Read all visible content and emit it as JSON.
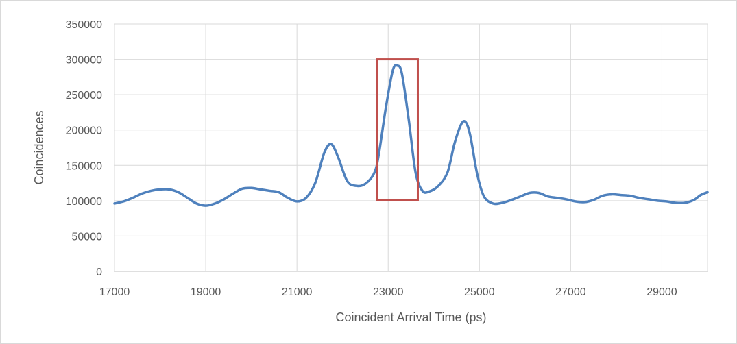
{
  "chart_data": {
    "type": "line",
    "title": "",
    "xlabel": "Coincident Arrival Time (ps)",
    "ylabel": "Coincidences",
    "xlim": [
      17000,
      30000
    ],
    "ylim": [
      0,
      350000
    ],
    "x_ticks": [
      17000,
      19000,
      21000,
      23000,
      25000,
      27000,
      29000
    ],
    "x_tick_labels": [
      "17000",
      "19000",
      "21000",
      "23000",
      "25000",
      "27000",
      "29000"
    ],
    "y_ticks": [
      0,
      50000,
      100000,
      150000,
      200000,
      250000,
      300000,
      350000
    ],
    "y_tick_labels": [
      "0",
      "50000",
      "100000",
      "150000",
      "200000",
      "250000",
      "300000",
      "350000"
    ],
    "grid": true,
    "legend": "none",
    "series": [
      {
        "color": "#4f81bd",
        "points": [
          [
            17000,
            96000
          ],
          [
            17200,
            99000
          ],
          [
            17400,
            104000
          ],
          [
            17600,
            110000
          ],
          [
            17800,
            114000
          ],
          [
            18000,
            116000
          ],
          [
            18200,
            116000
          ],
          [
            18400,
            112000
          ],
          [
            18600,
            104000
          ],
          [
            18800,
            96000
          ],
          [
            19000,
            93000
          ],
          [
            19200,
            96000
          ],
          [
            19400,
            102000
          ],
          [
            19600,
            110000
          ],
          [
            19800,
            117000
          ],
          [
            20000,
            118000
          ],
          [
            20200,
            116000
          ],
          [
            20400,
            114000
          ],
          [
            20600,
            112000
          ],
          [
            20800,
            104000
          ],
          [
            21000,
            99000
          ],
          [
            21200,
            104000
          ],
          [
            21400,
            125000
          ],
          [
            21600,
            168000
          ],
          [
            21750,
            180000
          ],
          [
            21900,
            162000
          ],
          [
            22100,
            128000
          ],
          [
            22300,
            121000
          ],
          [
            22500,
            124000
          ],
          [
            22700,
            140000
          ],
          [
            22800,
            168000
          ],
          [
            22950,
            232000
          ],
          [
            23100,
            284000
          ],
          [
            23200,
            291000
          ],
          [
            23300,
            280000
          ],
          [
            23450,
            215000
          ],
          [
            23600,
            140000
          ],
          [
            23750,
            114000
          ],
          [
            23900,
            113000
          ],
          [
            24100,
            121000
          ],
          [
            24300,
            140000
          ],
          [
            24450,
            180000
          ],
          [
            24600,
            208000
          ],
          [
            24700,
            211000
          ],
          [
            24800,
            192000
          ],
          [
            24950,
            138000
          ],
          [
            25100,
            106000
          ],
          [
            25300,
            96000
          ],
          [
            25500,
            97000
          ],
          [
            25700,
            101000
          ],
          [
            25900,
            106000
          ],
          [
            26100,
            111000
          ],
          [
            26300,
            111000
          ],
          [
            26500,
            106000
          ],
          [
            26700,
            104000
          ],
          [
            26900,
            102000
          ],
          [
            27100,
            99000
          ],
          [
            27300,
            98000
          ],
          [
            27500,
            101000
          ],
          [
            27700,
            107000
          ],
          [
            27900,
            109000
          ],
          [
            28100,
            108000
          ],
          [
            28300,
            107000
          ],
          [
            28500,
            104000
          ],
          [
            28700,
            102000
          ],
          [
            28900,
            100000
          ],
          [
            29100,
            99000
          ],
          [
            29300,
            97000
          ],
          [
            29500,
            97000
          ],
          [
            29700,
            101000
          ],
          [
            29850,
            108000
          ],
          [
            30000,
            112000
          ]
        ]
      }
    ],
    "annotation_box": {
      "x_range": [
        22750,
        23650
      ],
      "y_range": [
        101000,
        300000
      ],
      "color": "#c0504d"
    }
  }
}
